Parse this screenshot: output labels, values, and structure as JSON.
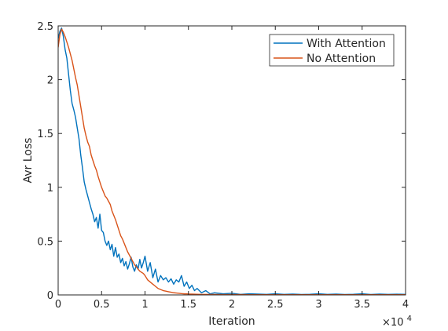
{
  "chart_data": {
    "type": "line",
    "xlabel": "Iteration",
    "ylabel": "Avr Loss",
    "x_exponent_label": "×10",
    "x_exponent_power": "4",
    "xlim": [
      0,
      40000
    ],
    "ylim": [
      0,
      2.5
    ],
    "x_ticks": [
      0,
      5000,
      10000,
      15000,
      20000,
      25000,
      30000,
      35000,
      40000
    ],
    "x_tick_labels": [
      "0",
      "0.5",
      "1",
      "1.5",
      "2",
      "2.5",
      "3",
      "3.5",
      "4"
    ],
    "y_ticks": [
      0,
      0.5,
      1,
      1.5,
      2,
      2.5
    ],
    "y_tick_labels": [
      "0",
      "0.5",
      "1",
      "1.5",
      "2",
      "2.5"
    ],
    "grid": false,
    "legend_position": "top-right",
    "series": [
      {
        "name": "With Attention",
        "color": "#0072BD",
        "x": [
          0,
          200,
          400,
          600,
          800,
          1000,
          1200,
          1400,
          1600,
          1800,
          2000,
          2200,
          2400,
          2600,
          2800,
          3000,
          3200,
          3400,
          3600,
          3800,
          4000,
          4200,
          4400,
          4600,
          4800,
          5000,
          5200,
          5400,
          5600,
          5800,
          6000,
          6200,
          6400,
          6600,
          6800,
          7000,
          7200,
          7400,
          7600,
          7800,
          8000,
          8200,
          8400,
          8600,
          8800,
          9000,
          9200,
          9400,
          9600,
          9800,
          10000,
          10300,
          10600,
          10900,
          11200,
          11500,
          11800,
          12100,
          12400,
          12700,
          13000,
          13300,
          13600,
          13900,
          14200,
          14500,
          14800,
          15100,
          15400,
          15700,
          16000,
          16500,
          17000,
          17500,
          18000,
          19000,
          20000,
          21000,
          22000,
          23000,
          24000,
          25000,
          26000,
          27000,
          28000,
          29000,
          30000,
          31000,
          32000,
          33000,
          34000,
          35000,
          36000,
          37000,
          38000,
          39000,
          40000
        ],
        "y": [
          2.38,
          2.45,
          2.48,
          2.4,
          2.28,
          2.2,
          2.05,
          1.9,
          1.78,
          1.72,
          1.65,
          1.55,
          1.45,
          1.3,
          1.18,
          1.05,
          0.98,
          0.92,
          0.86,
          0.8,
          0.75,
          0.68,
          0.72,
          0.62,
          0.75,
          0.6,
          0.58,
          0.5,
          0.46,
          0.5,
          0.42,
          0.47,
          0.36,
          0.44,
          0.35,
          0.38,
          0.3,
          0.34,
          0.27,
          0.31,
          0.24,
          0.29,
          0.35,
          0.26,
          0.22,
          0.28,
          0.24,
          0.33,
          0.25,
          0.3,
          0.36,
          0.22,
          0.3,
          0.16,
          0.24,
          0.12,
          0.18,
          0.14,
          0.16,
          0.12,
          0.15,
          0.1,
          0.14,
          0.12,
          0.18,
          0.08,
          0.12,
          0.06,
          0.09,
          0.04,
          0.06,
          0.02,
          0.04,
          0.01,
          0.02,
          0.01,
          0.015,
          0.005,
          0.01,
          0.008,
          0.005,
          0.01,
          0.005,
          0.008,
          0.004,
          0.006,
          0.01,
          0.005,
          0.008,
          0.004,
          0.006,
          0.01,
          0.004,
          0.008,
          0.005,
          0.007,
          0.005
        ]
      },
      {
        "name": "No Attention",
        "color": "#D95319",
        "x": [
          0,
          200,
          400,
          600,
          800,
          1000,
          1200,
          1400,
          1600,
          1800,
          2000,
          2200,
          2400,
          2600,
          2800,
          3000,
          3200,
          3400,
          3600,
          3800,
          4000,
          4200,
          4400,
          4600,
          4800,
          5000,
          5200,
          5400,
          5600,
          5800,
          6000,
          6200,
          6400,
          6600,
          6800,
          7000,
          7200,
          7400,
          7600,
          7800,
          8000,
          8200,
          8400,
          8600,
          8800,
          9000,
          9200,
          9400,
          9600,
          9800,
          10000,
          10300,
          10600,
          10900,
          11200,
          11500,
          11800,
          12100,
          12400,
          12700,
          13000,
          13300,
          13600,
          13900,
          14200,
          14500,
          14800,
          15100,
          15400,
          15700,
          16000,
          16500,
          17000,
          17500,
          18000,
          19000,
          20000,
          21000,
          22000,
          23000,
          24000,
          25000,
          26000,
          27000,
          28000,
          29000,
          30000,
          31000,
          32000,
          33000,
          34000,
          35000,
          36000,
          37000,
          38000,
          39000,
          40000
        ],
        "y": [
          2.3,
          2.42,
          2.47,
          2.44,
          2.4,
          2.35,
          2.3,
          2.24,
          2.18,
          2.1,
          2.02,
          1.95,
          1.85,
          1.75,
          1.65,
          1.55,
          1.48,
          1.42,
          1.38,
          1.3,
          1.25,
          1.2,
          1.16,
          1.1,
          1.05,
          1.0,
          0.96,
          0.92,
          0.9,
          0.87,
          0.84,
          0.78,
          0.74,
          0.7,
          0.65,
          0.6,
          0.55,
          0.52,
          0.48,
          0.44,
          0.4,
          0.37,
          0.34,
          0.31,
          0.28,
          0.26,
          0.24,
          0.22,
          0.21,
          0.2,
          0.18,
          0.14,
          0.12,
          0.1,
          0.08,
          0.06,
          0.05,
          0.04,
          0.035,
          0.03,
          0.025,
          0.02,
          0.018,
          0.015,
          0.012,
          0.01,
          0.01,
          0.008,
          0.008,
          0.007,
          0.006,
          0.005,
          0.005,
          0.004,
          0.004,
          0.003,
          0.003,
          0.003,
          0.002,
          0.002,
          0.002,
          0.002,
          0.002,
          0.002,
          0.002,
          0.002,
          0.002,
          0.002,
          0.002,
          0.002,
          0.002,
          0.002,
          0.002,
          0.002,
          0.002,
          0.002,
          0.002
        ]
      }
    ]
  }
}
